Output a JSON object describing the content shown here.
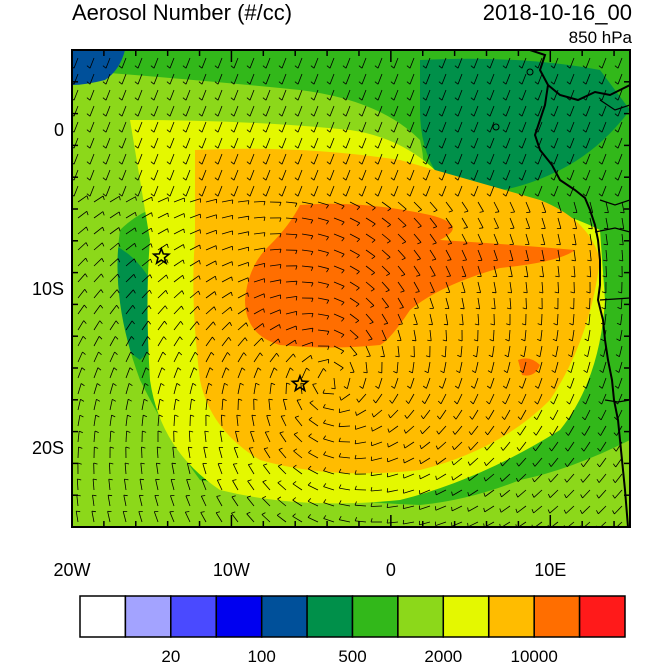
{
  "header": {
    "title": "Aerosol Number (#/cc)",
    "datetime": "2018-10-16_00",
    "level": "850 hPa"
  },
  "map": {
    "lon_range": [
      -20,
      15
    ],
    "lat_range": [
      -25,
      5
    ],
    "y_ticks": [
      {
        "lat": 0,
        "label": "0"
      },
      {
        "lat": -10,
        "label": "10S"
      },
      {
        "lat": -20,
        "label": "20S"
      }
    ],
    "x_ticks": [
      {
        "lon": -20,
        "label": "20W"
      },
      {
        "lon": -10,
        "label": "10W"
      },
      {
        "lon": 0,
        "label": "0"
      },
      {
        "lon": 10,
        "label": "10E"
      }
    ],
    "markers": [
      {
        "name": "star-marker-west",
        "lon": -14.4,
        "lat": -8.0
      },
      {
        "name": "star-marker-south",
        "lon": -5.7,
        "lat": -16.0
      }
    ]
  },
  "colorbar": {
    "colors": [
      "#ffffff",
      "#a3a3ff",
      "#4a4aff",
      "#0000f0",
      "#00509a",
      "#00904a",
      "#32b81a",
      "#8cd81a",
      "#e4f800",
      "#ffbc00",
      "#ff6e00",
      "#ff1a1a"
    ],
    "labels": [
      "20",
      "100",
      "500",
      "2000",
      "10000"
    ]
  },
  "field_colors": {
    "green": "#32b81a",
    "darkgreen": "#00904a",
    "lightgreen": "#8cd81a",
    "yellow": "#e4f800",
    "orange": "#ffbc00",
    "darkorange": "#ff6e00",
    "blue": "#00509a"
  }
}
